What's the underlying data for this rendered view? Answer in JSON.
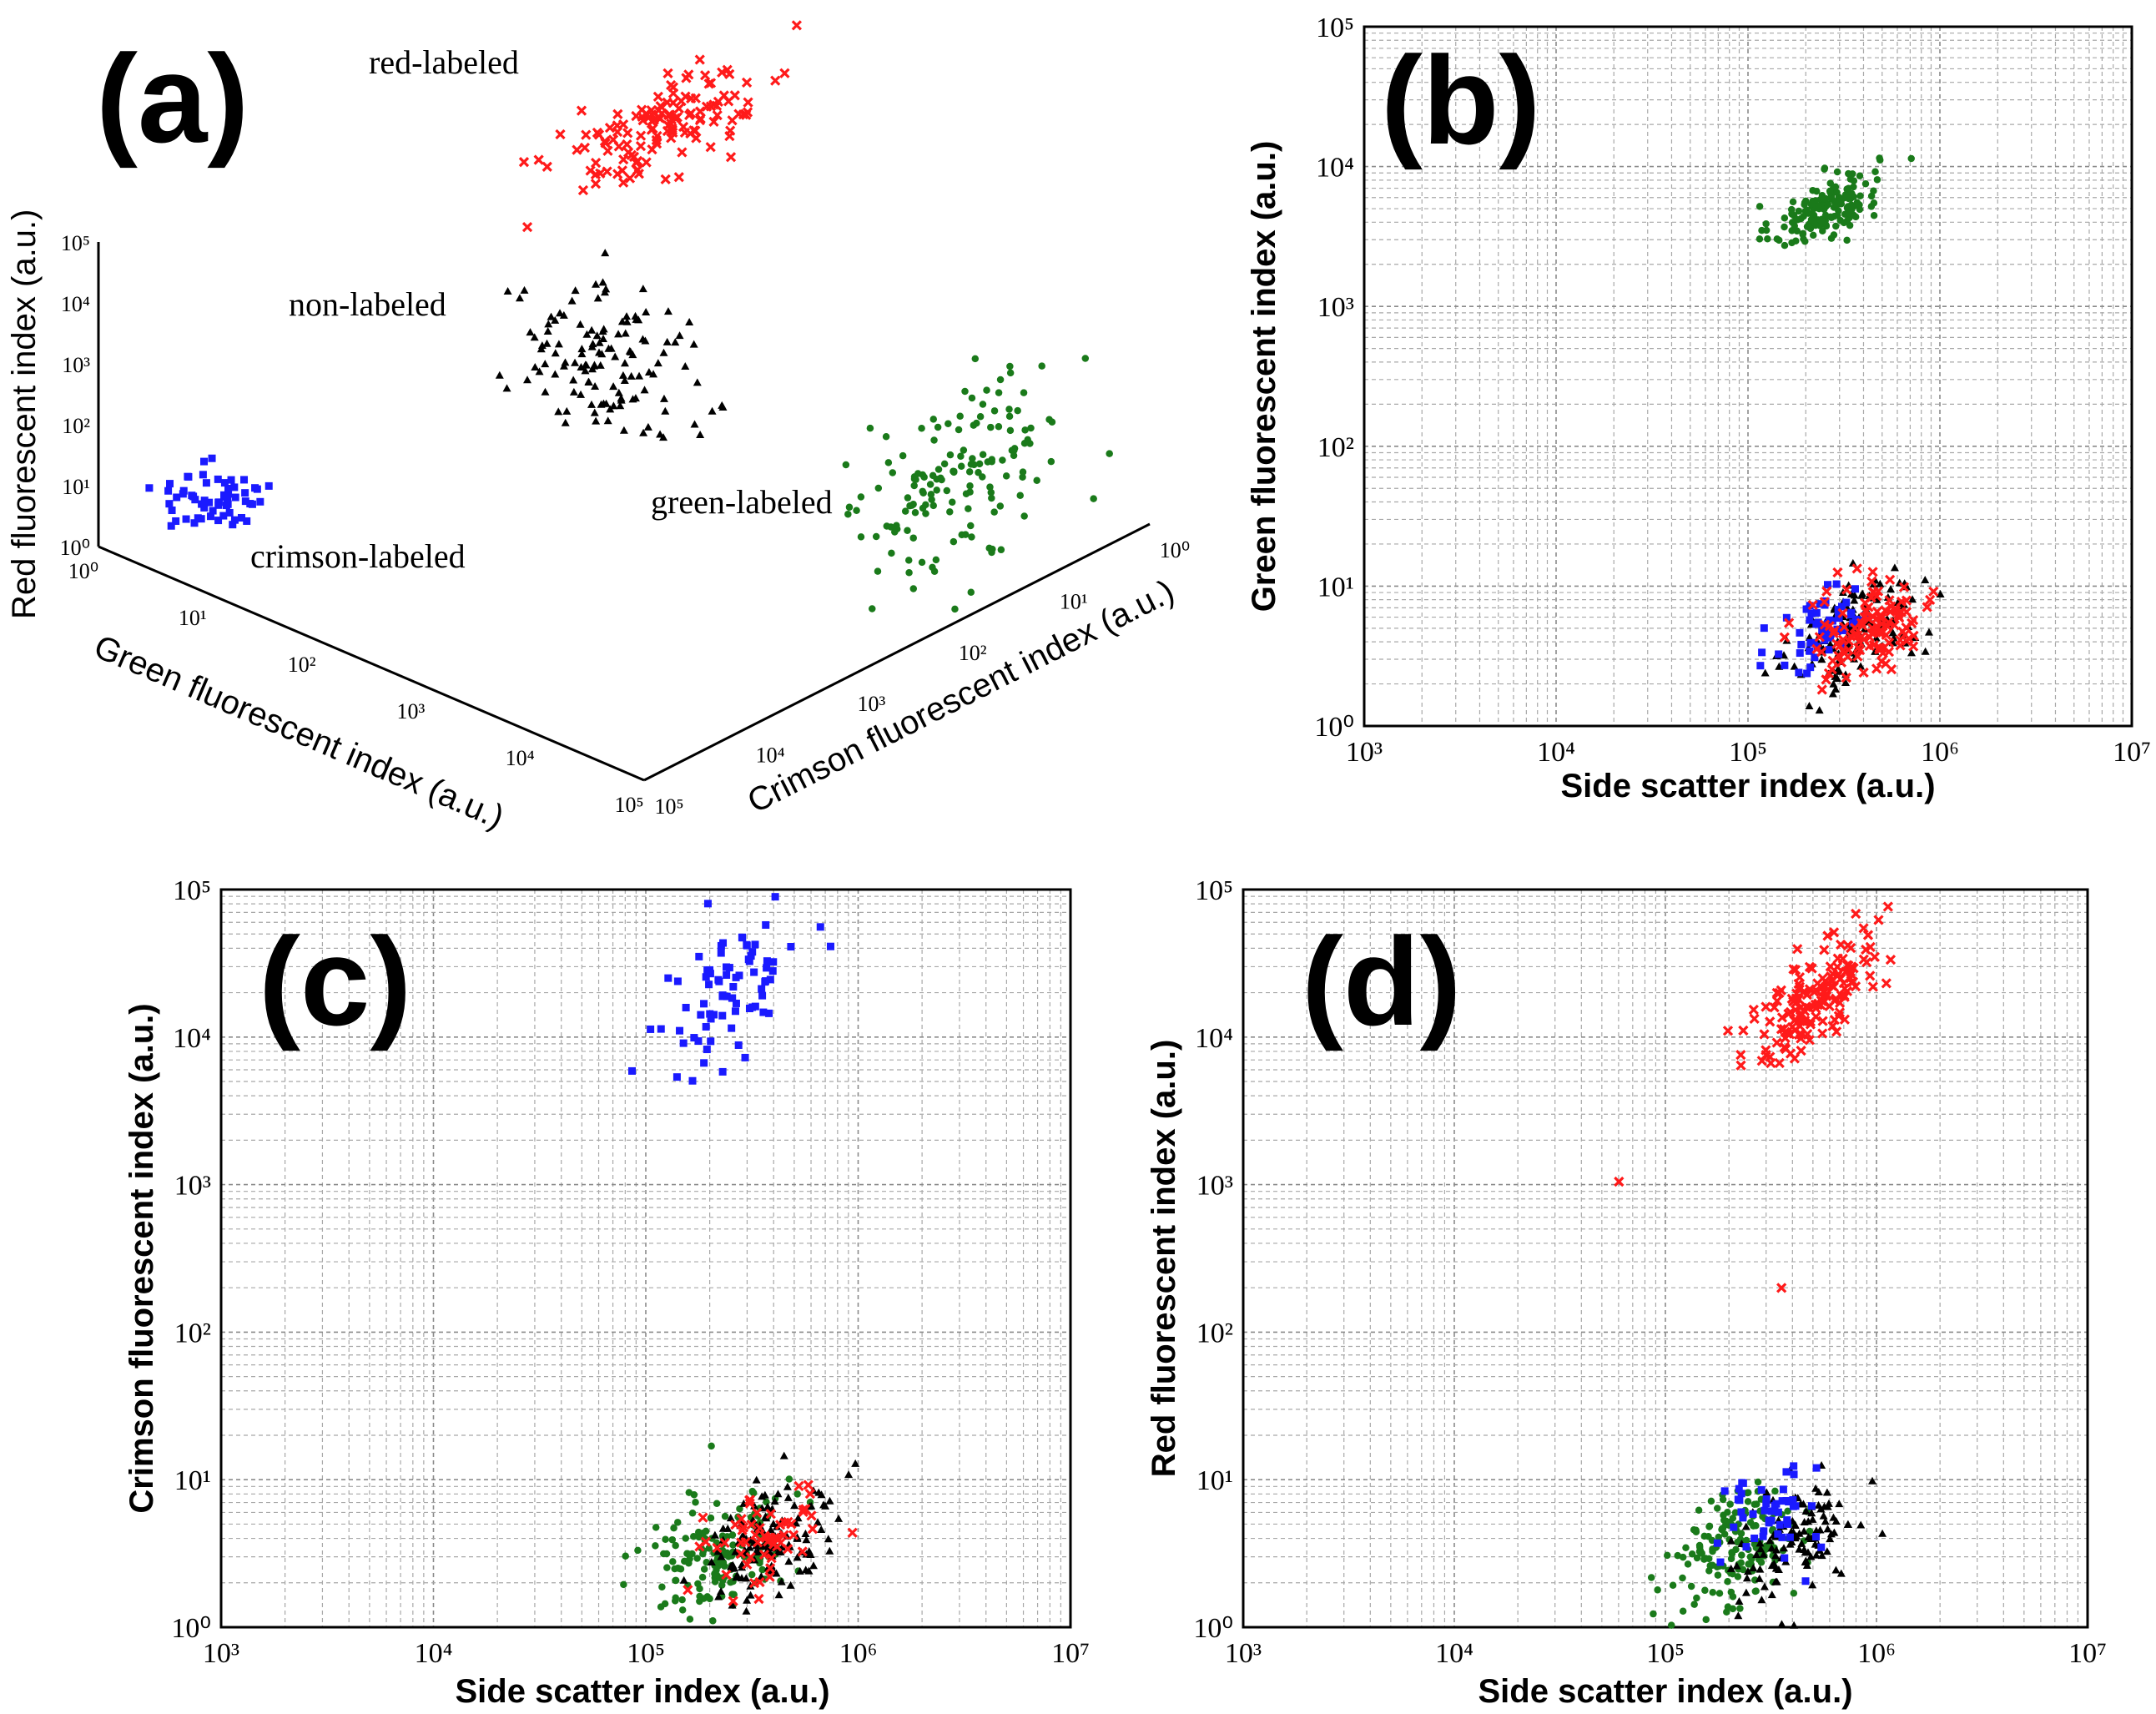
{
  "figure": {
    "panel_a": {
      "letter": "(a)"
    },
    "panel_b": {
      "letter": "(b)"
    },
    "panel_c": {
      "letter": "(c)"
    },
    "panel_d": {
      "letter": "(d)"
    }
  },
  "colors": {
    "red": "#ff1a1a",
    "black": "#000000",
    "blue": "#1a1aff",
    "green": "#1a7a1a",
    "grid": "#8a8a8a"
  },
  "chart_data": [
    {
      "id": "a",
      "type": "scatter",
      "projection": "3d",
      "title": "(a)",
      "axes": {
        "green": {
          "label": "Green fluorescent index (a.u.)",
          "ticks": [
            "10⁰",
            "10¹",
            "10²",
            "10³",
            "10⁴",
            "10⁵"
          ],
          "range_log10": [
            0,
            5
          ]
        },
        "crimson": {
          "label": "Crimson fluorescent index (a.u.)",
          "ticks": [
            "10⁰",
            "10¹",
            "10²",
            "10³",
            "10⁴",
            "10⁵"
          ],
          "range_log10": [
            0,
            5
          ]
        },
        "red": {
          "label": "Red fluorescent index (a.u.)",
          "ticks": [
            "10⁰",
            "10¹",
            "10²",
            "10³",
            "10⁴",
            "10⁵"
          ],
          "range_log10": [
            0,
            5
          ]
        }
      },
      "annotations": [
        "red-labeled",
        "non-labeled",
        "crimson-labeled",
        "green-labeled"
      ],
      "clusters": [
        {
          "name": "red-labeled",
          "color": "#ff1a1a",
          "marker": "x",
          "count": 140,
          "center_log10": {
            "green": 0.7,
            "crimson": 0.7,
            "red": 4.2
          }
        },
        {
          "name": "non-labeled",
          "color": "#000000",
          "marker": "triangle",
          "count": 130,
          "center_log10": {
            "green": 0.7,
            "crimson": 0.7,
            "red": 0.7
          }
        },
        {
          "name": "crimson-labeled",
          "color": "#1a1aff",
          "marker": "square",
          "count": 60,
          "center_log10": {
            "green": 0.7,
            "crimson": 4.2,
            "red": 0.7
          }
        },
        {
          "name": "green-labeled",
          "color": "#1a7a1a",
          "marker": "circle",
          "count": 150,
          "center_log10": {
            "green": 3.8,
            "crimson": 0.7,
            "red": 0.7
          }
        }
      ]
    },
    {
      "id": "b",
      "type": "scatter",
      "title": "(b)",
      "xscale": "log",
      "yscale": "log",
      "xlabel": "Side scatter index (a.u.)",
      "ylabel": "Green fluorescent index (a.u.)",
      "xlim_log10": [
        3,
        7
      ],
      "ylim_log10": [
        0,
        5
      ],
      "xticks": [
        "10³",
        "10⁴",
        "10⁵",
        "10⁶",
        "10⁷"
      ],
      "yticks": [
        "10⁰",
        "10¹",
        "10²",
        "10³",
        "10⁴",
        "10⁵"
      ],
      "series": [
        {
          "name": "green-labeled",
          "color": "#1a7a1a",
          "marker": "circle",
          "count": 160,
          "x_center_log10": 5.4,
          "y_center_log10": 3.7,
          "x_spread": 0.14,
          "y_spread": 0.14,
          "corr": 0.6
        },
        {
          "name": "non-labeled",
          "color": "#000000",
          "marker": "triangle",
          "count": 140,
          "x_center_log10": 5.57,
          "y_center_log10": 0.68,
          "x_spread": 0.17,
          "y_spread": 0.2,
          "corr": 0.4
        },
        {
          "name": "crimson-labeled",
          "color": "#1a1aff",
          "marker": "square",
          "count": 60,
          "x_center_log10": 5.4,
          "y_center_log10": 0.7,
          "x_spread": 0.13,
          "y_spread": 0.17,
          "corr": 0.3
        },
        {
          "name": "red-labeled",
          "color": "#ff1a1a",
          "marker": "x",
          "count": 120,
          "x_center_log10": 5.65,
          "y_center_log10": 0.72,
          "x_spread": 0.17,
          "y_spread": 0.2,
          "corr": 0.5
        }
      ]
    },
    {
      "id": "c",
      "type": "scatter",
      "title": "(c)",
      "xscale": "log",
      "yscale": "log",
      "xlabel": "Side scatter index (a.u.)",
      "ylabel": "Crimson fluorescent index (a.u.)",
      "xlim_log10": [
        3,
        7
      ],
      "ylim_log10": [
        0,
        5
      ],
      "xticks": [
        "10³",
        "10⁴",
        "10⁵",
        "10⁶",
        "10⁷"
      ],
      "yticks": [
        "10⁰",
        "10¹",
        "10²",
        "10³",
        "10⁴",
        "10⁵"
      ],
      "series": [
        {
          "name": "crimson-labeled",
          "color": "#1a1aff",
          "marker": "square",
          "count": 80,
          "x_center_log10": 5.4,
          "y_center_log10": 4.3,
          "x_spread": 0.16,
          "y_spread": 0.3,
          "corr": 0.6
        },
        {
          "name": "green-labeled",
          "color": "#1a7a1a",
          "marker": "circle",
          "count": 160,
          "x_center_log10": 5.35,
          "y_center_log10": 0.5,
          "x_spread": 0.17,
          "y_spread": 0.2,
          "corr": 0.3
        },
        {
          "name": "non-labeled",
          "color": "#000000",
          "marker": "triangle",
          "count": 130,
          "x_center_log10": 5.6,
          "y_center_log10": 0.6,
          "x_spread": 0.15,
          "y_spread": 0.2,
          "corr": 0.3
        },
        {
          "name": "red-labeled",
          "color": "#ff1a1a",
          "marker": "x",
          "count": 60,
          "x_center_log10": 5.55,
          "y_center_log10": 0.6,
          "x_spread": 0.15,
          "y_spread": 0.2,
          "corr": 0.2
        }
      ]
    },
    {
      "id": "d",
      "type": "scatter",
      "title": "(d)",
      "xscale": "log",
      "yscale": "log",
      "xlabel": "Side scatter index (a.u.)",
      "ylabel": "Red fluorescent index (a.u.)",
      "xlim_log10": [
        3,
        7
      ],
      "ylim_log10": [
        0,
        5
      ],
      "xticks": [
        "10³",
        "10⁴",
        "10⁵",
        "10⁶",
        "10⁷"
      ],
      "yticks": [
        "10⁰",
        "10¹",
        "10²",
        "10³",
        "10⁴",
        "10⁵"
      ],
      "series": [
        {
          "name": "red-labeled",
          "color": "#ff1a1a",
          "marker": "x",
          "count": 160,
          "x_center_log10": 5.7,
          "y_center_log10": 4.25,
          "x_spread": 0.15,
          "y_spread": 0.2,
          "corr": 0.7
        },
        {
          "name": "green-labeled",
          "color": "#1a7a1a",
          "marker": "circle",
          "count": 170,
          "x_center_log10": 5.35,
          "y_center_log10": 0.55,
          "x_spread": 0.15,
          "y_spread": 0.2,
          "corr": 0.3
        },
        {
          "name": "non-labeled",
          "color": "#000000",
          "marker": "triangle",
          "count": 120,
          "x_center_log10": 5.62,
          "y_center_log10": 0.6,
          "x_spread": 0.14,
          "y_spread": 0.2,
          "corr": 0.3
        },
        {
          "name": "crimson-labeled",
          "color": "#1a1aff",
          "marker": "square",
          "count": 50,
          "x_center_log10": 5.5,
          "y_center_log10": 0.75,
          "x_spread": 0.12,
          "y_spread": 0.18,
          "corr": 0.2
        }
      ],
      "outliers": [
        {
          "name": "red-labeled",
          "x_log10": 4.78,
          "y_log10": 3.02
        },
        {
          "name": "red-labeled",
          "x_log10": 5.55,
          "y_log10": 2.3
        }
      ]
    }
  ]
}
